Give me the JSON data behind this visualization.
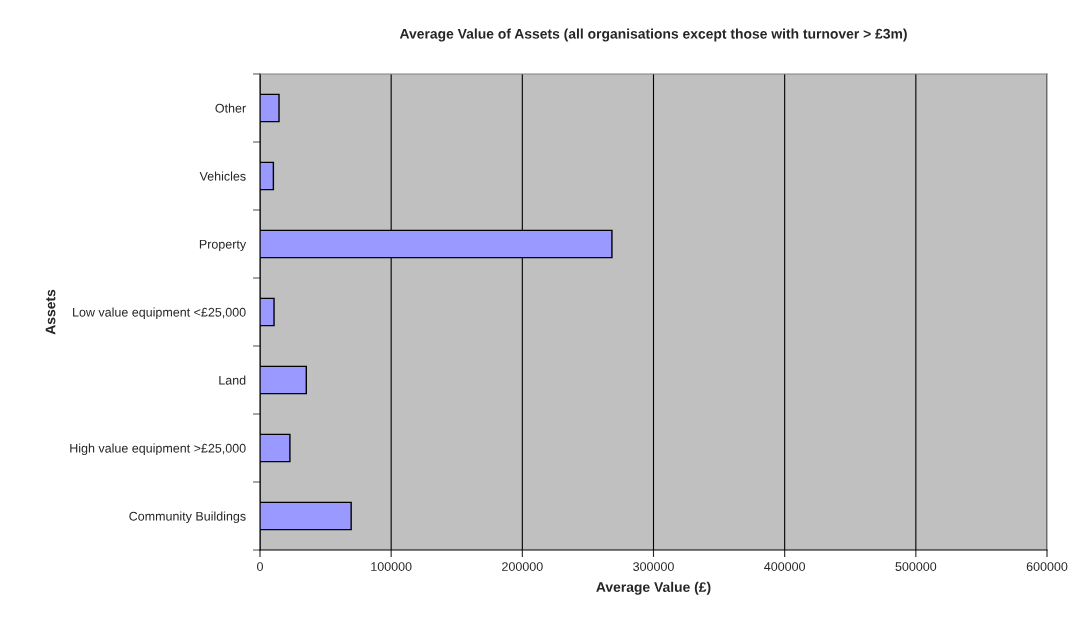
{
  "chart_data": {
    "type": "bar",
    "orientation": "horizontal",
    "title": "Average Value of Assets (all organisations except those with turnover > £3m)",
    "xlabel": "Average Value (£)",
    "ylabel": "Assets",
    "categories": [
      "Other",
      "Vehicles",
      "Property",
      "Low value equipment <£25,000",
      "Land",
      "High value equipment >£25,000",
      "Community Buildings"
    ],
    "values": [
      14500,
      10200,
      268300,
      10700,
      35300,
      22800,
      69500
    ],
    "color": "#9999ff",
    "xlim": [
      0,
      600000
    ],
    "xticks": [
      0,
      100000,
      200000,
      300000,
      400000,
      500000,
      600000
    ],
    "grid": "x"
  }
}
